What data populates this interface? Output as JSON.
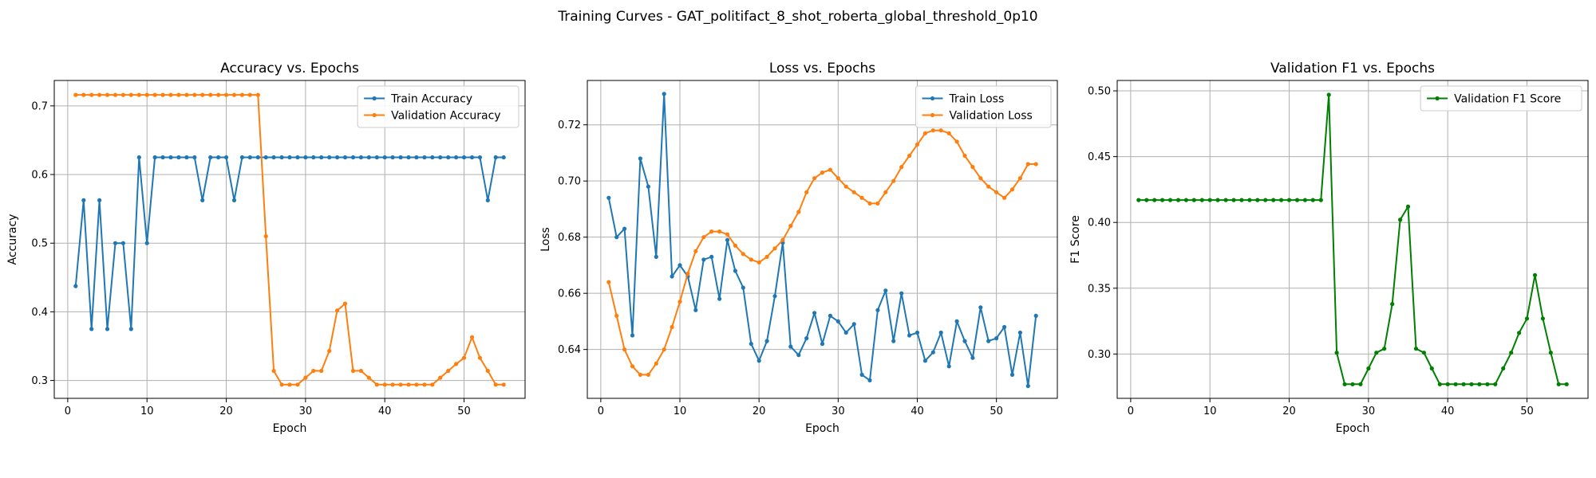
{
  "figure": {
    "suptitle": "Training Curves - GAT_politifact_8_shot_roberta_global_threshold_0p10"
  },
  "colors": {
    "blue": "#1f77b4",
    "orange": "#ff7f0e",
    "green": "#008000",
    "grid": "#b0b0b0"
  },
  "chart_data": [
    {
      "type": "line",
      "title": "Accuracy vs. Epochs",
      "xlabel": "Epoch",
      "ylabel": "Accuracy",
      "xlim": [
        -1.7,
        57.7
      ],
      "ylim": [
        0.274,
        0.737
      ],
      "xticks": [
        0,
        10,
        20,
        30,
        40,
        50
      ],
      "yticks": [
        0.3,
        0.4,
        0.5,
        0.6,
        0.7
      ],
      "ytick_labels": [
        "0.3",
        "0.4",
        "0.5",
        "0.6",
        "0.7"
      ],
      "grid": true,
      "legend": "top-right",
      "series": [
        {
          "name": "Train Accuracy",
          "color": "#1f77b4",
          "x": [
            1,
            2,
            3,
            4,
            5,
            6,
            7,
            8,
            9,
            10,
            11,
            12,
            13,
            14,
            15,
            16,
            17,
            18,
            19,
            20,
            21,
            22,
            23,
            24,
            25,
            26,
            27,
            28,
            29,
            30,
            31,
            32,
            33,
            34,
            35,
            36,
            37,
            38,
            39,
            40,
            41,
            42,
            43,
            44,
            45,
            46,
            47,
            48,
            49,
            50,
            51,
            52,
            53,
            54,
            55
          ],
          "y": [
            0.4375,
            0.5625,
            0.375,
            0.5625,
            0.375,
            0.5,
            0.5,
            0.375,
            0.625,
            0.5,
            0.625,
            0.625,
            0.625,
            0.625,
            0.625,
            0.625,
            0.5625,
            0.625,
            0.625,
            0.625,
            0.5625,
            0.625,
            0.625,
            0.625,
            0.625,
            0.625,
            0.625,
            0.625,
            0.625,
            0.625,
            0.625,
            0.625,
            0.625,
            0.625,
            0.625,
            0.625,
            0.625,
            0.625,
            0.625,
            0.625,
            0.625,
            0.625,
            0.625,
            0.625,
            0.625,
            0.625,
            0.625,
            0.625,
            0.625,
            0.625,
            0.625,
            0.625,
            0.5625,
            0.625,
            0.625
          ]
        },
        {
          "name": "Validation Accuracy",
          "color": "#ff7f0e",
          "x": [
            1,
            2,
            3,
            4,
            5,
            6,
            7,
            8,
            9,
            10,
            11,
            12,
            13,
            14,
            15,
            16,
            17,
            18,
            19,
            20,
            21,
            22,
            23,
            24,
            25,
            26,
            27,
            28,
            29,
            30,
            31,
            32,
            33,
            34,
            35,
            36,
            37,
            38,
            39,
            40,
            41,
            42,
            43,
            44,
            45,
            46,
            47,
            48,
            49,
            50,
            51,
            52,
            53,
            54,
            55
          ],
          "y": [
            0.716,
            0.716,
            0.716,
            0.716,
            0.716,
            0.716,
            0.716,
            0.716,
            0.716,
            0.716,
            0.716,
            0.716,
            0.716,
            0.716,
            0.716,
            0.716,
            0.716,
            0.716,
            0.716,
            0.716,
            0.716,
            0.716,
            0.716,
            0.716,
            0.51,
            0.314,
            0.294,
            0.294,
            0.294,
            0.304,
            0.314,
            0.314,
            0.343,
            0.402,
            0.412,
            0.314,
            0.314,
            0.304,
            0.294,
            0.294,
            0.294,
            0.294,
            0.294,
            0.294,
            0.294,
            0.294,
            0.304,
            0.314,
            0.324,
            0.333,
            0.363,
            0.333,
            0.314,
            0.294,
            0.294
          ]
        }
      ]
    },
    {
      "type": "line",
      "title": "Loss vs. Epochs",
      "xlabel": "Epoch",
      "ylabel": "Loss",
      "xlim": [
        -1.7,
        57.7
      ],
      "ylim": [
        0.6226,
        0.7358
      ],
      "xticks": [
        0,
        10,
        20,
        30,
        40,
        50
      ],
      "yticks": [
        0.64,
        0.66,
        0.68,
        0.7,
        0.72
      ],
      "ytick_labels": [
        "0.64",
        "0.66",
        "0.68",
        "0.70",
        "0.72"
      ],
      "grid": true,
      "legend": "top-right",
      "series": [
        {
          "name": "Train Loss",
          "color": "#1f77b4",
          "x": [
            1,
            2,
            3,
            4,
            5,
            6,
            7,
            8,
            9,
            10,
            11,
            12,
            13,
            14,
            15,
            16,
            17,
            18,
            19,
            20,
            21,
            22,
            23,
            24,
            25,
            26,
            27,
            28,
            29,
            30,
            31,
            32,
            33,
            34,
            35,
            36,
            37,
            38,
            39,
            40,
            41,
            42,
            43,
            44,
            45,
            46,
            47,
            48,
            49,
            50,
            51,
            52,
            53,
            54,
            55
          ],
          "y": [
            0.694,
            0.68,
            0.683,
            0.645,
            0.708,
            0.698,
            0.673,
            0.731,
            0.666,
            0.67,
            0.666,
            0.654,
            0.672,
            0.673,
            0.658,
            0.679,
            0.668,
            0.662,
            0.642,
            0.636,
            0.643,
            0.659,
            0.678,
            0.641,
            0.638,
            0.644,
            0.653,
            0.642,
            0.652,
            0.65,
            0.646,
            0.649,
            0.631,
            0.629,
            0.654,
            0.661,
            0.643,
            0.66,
            0.645,
            0.646,
            0.636,
            0.639,
            0.646,
            0.634,
            0.65,
            0.643,
            0.637,
            0.655,
            0.643,
            0.644,
            0.648,
            0.631,
            0.646,
            0.627,
            0.652
          ]
        },
        {
          "name": "Validation Loss",
          "color": "#ff7f0e",
          "x": [
            1,
            2,
            3,
            4,
            5,
            6,
            7,
            8,
            9,
            10,
            11,
            12,
            13,
            14,
            15,
            16,
            17,
            18,
            19,
            20,
            21,
            22,
            23,
            24,
            25,
            26,
            27,
            28,
            29,
            30,
            31,
            32,
            33,
            34,
            35,
            36,
            37,
            38,
            39,
            40,
            41,
            42,
            43,
            44,
            45,
            46,
            47,
            48,
            49,
            50,
            51,
            52,
            53,
            54,
            55
          ],
          "y": [
            0.664,
            0.652,
            0.64,
            0.634,
            0.631,
            0.631,
            0.635,
            0.64,
            0.648,
            0.657,
            0.667,
            0.675,
            0.68,
            0.682,
            0.682,
            0.681,
            0.677,
            0.674,
            0.672,
            0.671,
            0.673,
            0.676,
            0.679,
            0.684,
            0.689,
            0.696,
            0.701,
            0.703,
            0.704,
            0.701,
            0.698,
            0.696,
            0.694,
            0.692,
            0.692,
            0.696,
            0.7,
            0.705,
            0.709,
            0.713,
            0.717,
            0.718,
            0.718,
            0.717,
            0.714,
            0.709,
            0.705,
            0.701,
            0.698,
            0.696,
            0.694,
            0.697,
            0.701,
            0.706,
            0.706
          ]
        }
      ]
    },
    {
      "type": "line",
      "title": "Validation F1 vs. Epochs",
      "xlabel": "Epoch",
      "ylabel": "F1 Score",
      "xlim": [
        -1.7,
        57.7
      ],
      "ylim": [
        0.2663,
        0.5079
      ],
      "xticks": [
        0,
        10,
        20,
        30,
        40,
        50
      ],
      "yticks": [
        0.3,
        0.35,
        0.4,
        0.45,
        0.5
      ],
      "ytick_labels": [
        "0.30",
        "0.35",
        "0.40",
        "0.45",
        "0.50"
      ],
      "grid": true,
      "legend": "top-right",
      "series": [
        {
          "name": "Validation F1 Score",
          "color": "#008000",
          "x": [
            1,
            2,
            3,
            4,
            5,
            6,
            7,
            8,
            9,
            10,
            11,
            12,
            13,
            14,
            15,
            16,
            17,
            18,
            19,
            20,
            21,
            22,
            23,
            24,
            25,
            26,
            27,
            28,
            29,
            30,
            31,
            32,
            33,
            34,
            35,
            36,
            37,
            38,
            39,
            40,
            41,
            42,
            43,
            44,
            45,
            46,
            47,
            48,
            49,
            50,
            51,
            52,
            53,
            54,
            55
          ],
          "y": [
            0.417,
            0.417,
            0.417,
            0.417,
            0.417,
            0.417,
            0.417,
            0.417,
            0.417,
            0.417,
            0.417,
            0.417,
            0.417,
            0.417,
            0.417,
            0.417,
            0.417,
            0.417,
            0.417,
            0.417,
            0.417,
            0.417,
            0.417,
            0.417,
            0.497,
            0.301,
            0.277,
            0.277,
            0.277,
            0.289,
            0.301,
            0.304,
            0.338,
            0.402,
            0.412,
            0.304,
            0.301,
            0.289,
            0.277,
            0.277,
            0.277,
            0.277,
            0.277,
            0.277,
            0.277,
            0.277,
            0.289,
            0.301,
            0.316,
            0.327,
            0.36,
            0.327,
            0.301,
            0.277,
            0.277
          ]
        }
      ]
    }
  ]
}
